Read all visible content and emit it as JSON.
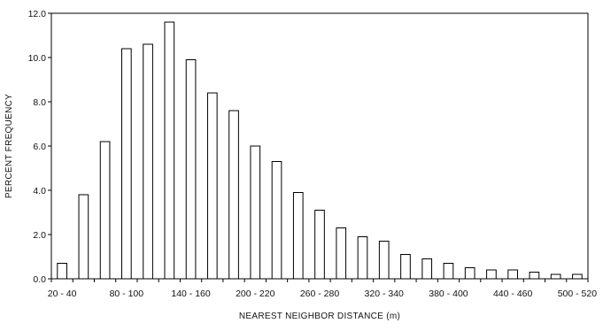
{
  "chart_data": {
    "type": "bar",
    "title": "",
    "xlabel": "NEAREST NEIGHBOR DISTANCE (m)",
    "ylabel": "PERCENT FREQUENCY",
    "ylim": [
      0,
      12
    ],
    "yticks": [
      "0.0",
      "2.0",
      "4.0",
      "6.0",
      "8.0",
      "10.0",
      "12.0"
    ],
    "grid": false,
    "legend": "none",
    "bar_color": "#ffffff",
    "bar_edge_color": "#000000",
    "categories": [
      "20 - 40",
      "40 - 60",
      "60 - 80",
      "80 - 100",
      "100 - 120",
      "120 - 140",
      "140 - 160",
      "160 - 180",
      "180 - 200",
      "200 - 220",
      "220 - 240",
      "240 - 260",
      "260 - 280",
      "280 - 300",
      "300 - 320",
      "320 - 340",
      "340 - 360",
      "360 - 380",
      "380 - 400",
      "400 - 420",
      "420 - 440",
      "440 - 460",
      "460 - 480",
      "480 - 500",
      "500 - 520"
    ],
    "visible_xtick_labels": [
      "20 - 40",
      "80 - 100",
      "140 - 160",
      "200 - 220",
      "260 - 280",
      "320 - 340",
      "380 - 400",
      "440 - 460",
      "500 - 520"
    ],
    "values": [
      0.7,
      3.8,
      6.2,
      10.4,
      10.6,
      11.6,
      9.9,
      8.4,
      7.6,
      6.0,
      5.3,
      3.9,
      3.1,
      2.3,
      1.9,
      1.7,
      1.1,
      0.9,
      0.7,
      0.5,
      0.4,
      0.4,
      0.3,
      0.2,
      0.2
    ]
  }
}
